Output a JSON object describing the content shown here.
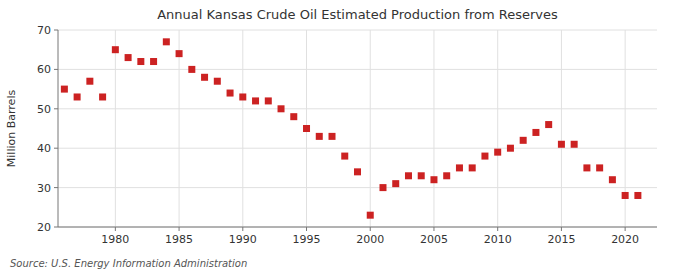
{
  "chart_data": {
    "type": "scatter",
    "title": "Annual Kansas Crude Oil Estimated Production from Reserves",
    "ylabel": "Million Barrels",
    "source": "Source: U.S. Energy Information Administration",
    "color": "#cc2222",
    "marker": "square",
    "grid": true,
    "xlim": [
      1975.5,
      2022.5
    ],
    "ylim": [
      20,
      70
    ],
    "xticks": [
      1980,
      1985,
      1990,
      1995,
      2000,
      2005,
      2010,
      2015,
      2020
    ],
    "yticks": [
      20,
      30,
      40,
      50,
      60,
      70
    ],
    "x": [
      1976,
      1977,
      1978,
      1979,
      1980,
      1981,
      1982,
      1983,
      1984,
      1985,
      1986,
      1987,
      1988,
      1989,
      1990,
      1991,
      1992,
      1993,
      1994,
      1995,
      1996,
      1997,
      1998,
      1999,
      2000,
      2001,
      2002,
      2003,
      2004,
      2005,
      2006,
      2007,
      2008,
      2009,
      2010,
      2011,
      2012,
      2013,
      2014,
      2015,
      2016,
      2017,
      2018,
      2019,
      2020,
      2021
    ],
    "values": [
      55,
      53,
      57,
      53,
      65,
      63,
      62,
      62,
      67,
      64,
      60,
      58,
      57,
      54,
      53,
      52,
      52,
      50,
      48,
      45,
      43,
      43,
      38,
      34,
      23,
      30,
      31,
      33,
      33,
      32,
      33,
      35,
      35,
      38,
      39,
      40,
      42,
      44,
      46,
      41,
      41,
      35,
      35,
      32,
      28,
      28
    ]
  }
}
